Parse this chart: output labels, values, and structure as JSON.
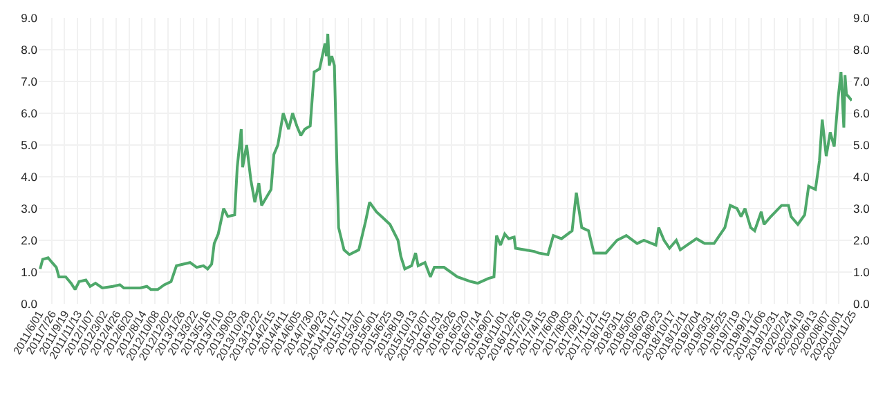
{
  "chart_data": {
    "type": "line",
    "x": [
      "2011-06-07",
      "2011-06-18",
      "2011-07-11",
      "2011-07-28",
      "2011-08-15",
      "2011-08-26",
      "2011-09-24",
      "2011-10-17",
      "2011-11-03",
      "2011-11-20",
      "2011-12-19",
      "2012-01-06",
      "2012-01-29",
      "2012-02-27",
      "2012-04-12",
      "2012-05-12",
      "2012-05-29",
      "2012-08-06",
      "2012-09-04",
      "2012-09-21",
      "2012-10-20",
      "2012-11-17",
      "2012-12-16",
      "2013-01-08",
      "2013-02-06",
      "2013-03-07",
      "2013-04-04",
      "2013-05-03",
      "2013-05-21",
      "2013-06-07",
      "2013-06-18",
      "2013-07-05",
      "2013-07-28",
      "2013-08-15",
      "2013-09-13",
      "2013-09-24",
      "2013-10-11",
      "2013-10-17",
      "2013-11-03",
      "2013-11-21",
      "2013-12-08",
      "2013-12-25",
      "2014-01-06",
      "2014-02-15",
      "2014-02-27",
      "2014-03-16",
      "2014-04-08",
      "2014-05-01",
      "2014-05-18",
      "2014-06-05",
      "2014-06-22",
      "2014-07-09",
      "2014-08-01",
      "2014-08-18",
      "2014-09-10",
      "2014-10-03",
      "2014-10-09",
      "2014-10-15",
      "2014-10-21",
      "2014-11-01",
      "2014-11-12",
      "2014-11-18",
      "2014-11-30",
      "2014-12-23",
      "2015-01-15",
      "2015-02-24",
      "2015-03-25",
      "2015-04-11",
      "2015-05-10",
      "2015-06-08",
      "2015-07-07",
      "2015-08-10",
      "2015-08-22",
      "2015-09-08",
      "2015-10-07",
      "2015-10-24",
      "2015-11-04",
      "2015-12-03",
      "2015-12-26",
      "2016-01-12",
      "2016-02-22",
      "2016-04-19",
      "2016-06-16",
      "2016-07-15",
      "2016-08-30",
      "2016-09-22",
      "2016-10-03",
      "2016-10-20",
      "2016-11-07",
      "2016-11-24",
      "2016-12-17",
      "2016-12-23",
      "2017-03-13",
      "2017-03-31",
      "2017-05-10",
      "2017-06-02",
      "2017-07-07",
      "2017-08-21",
      "2017-09-08",
      "2017-10-01",
      "2017-10-30",
      "2017-11-22",
      "2018-01-12",
      "2018-02-28",
      "2018-04-09",
      "2018-05-25",
      "2018-06-23",
      "2018-08-13",
      "2018-08-25",
      "2018-09-17",
      "2018-10-10",
      "2018-11-08",
      "2018-11-25",
      "2018-12-24",
      "2019-02-02",
      "2019-03-09",
      "2019-04-18",
      "2019-06-03",
      "2019-06-26",
      "2019-07-25",
      "2019-08-11",
      "2019-08-28",
      "2019-09-21",
      "2019-10-08",
      "2019-11-05",
      "2019-11-17",
      "2019-12-16",
      "2020-01-31",
      "2020-02-29",
      "2020-03-11",
      "2020-04-09",
      "2020-05-08",
      "2020-05-25",
      "2020-06-23",
      "2020-07-10",
      "2020-07-22",
      "2020-08-08",
      "2020-08-25",
      "2020-09-11",
      "2020-09-28",
      "2020-10-10",
      "2020-10-22",
      "2020-10-27",
      "2020-11-02",
      "2020-11-25"
    ],
    "series": [
      {
        "color": "#4ea86a",
        "values": [
          1.1,
          1.4,
          1.45,
          1.3,
          1.15,
          0.85,
          0.85,
          0.65,
          0.45,
          0.7,
          0.75,
          0.55,
          0.65,
          0.5,
          0.55,
          0.6,
          0.5,
          0.5,
          0.55,
          0.45,
          0.45,
          0.6,
          0.7,
          1.2,
          1.25,
          1.3,
          1.15,
          1.2,
          1.1,
          1.25,
          1.9,
          2.2,
          3.0,
          2.75,
          2.8,
          4.3,
          5.5,
          4.3,
          5.0,
          3.9,
          3.2,
          3.8,
          3.1,
          3.6,
          4.7,
          5.0,
          6.0,
          5.5,
          6.0,
          5.6,
          5.3,
          5.5,
          5.6,
          7.3,
          7.4,
          8.2,
          7.8,
          8.5,
          7.5,
          7.8,
          7.5,
          5.7,
          2.4,
          1.7,
          1.55,
          1.7,
          2.6,
          3.2,
          2.9,
          2.7,
          2.5,
          2.0,
          1.5,
          1.1,
          1.2,
          1.6,
          1.2,
          1.3,
          0.85,
          1.15,
          1.15,
          0.85,
          0.7,
          0.65,
          0.8,
          0.85,
          2.15,
          1.85,
          2.2,
          2.05,
          2.1,
          1.75,
          1.65,
          1.6,
          1.55,
          2.15,
          2.05,
          2.3,
          3.5,
          2.4,
          2.3,
          1.6,
          1.6,
          2.0,
          2.15,
          1.9,
          2.0,
          1.85,
          2.4,
          2.0,
          1.75,
          2.0,
          1.7,
          1.85,
          2.05,
          1.9,
          1.9,
          2.4,
          3.1,
          3.0,
          2.75,
          3.0,
          2.4,
          2.3,
          2.9,
          2.5,
          2.75,
          3.1,
          3.1,
          2.75,
          2.5,
          2.8,
          3.7,
          3.6,
          4.5,
          5.8,
          4.65,
          5.4,
          4.95,
          6.5,
          7.3,
          5.55,
          7.2,
          6.6,
          6.4
        ]
      }
    ],
    "xlim": [
      "2011-06-01",
      "2020-11-25"
    ],
    "xticks": [
      {
        "value": "2011-06-01",
        "label": "2011/6/01"
      },
      {
        "value": "2011-07-26",
        "label": "2011/7/26"
      },
      {
        "value": "2011-09-19",
        "label": "2011/9/19"
      },
      {
        "value": "2011-11-13",
        "label": "2011/11/13"
      },
      {
        "value": "2012-01-07",
        "label": "2012/1/07"
      },
      {
        "value": "2012-03-02",
        "label": "2012/3/02"
      },
      {
        "value": "2012-04-26",
        "label": "2012/4/26"
      },
      {
        "value": "2012-06-20",
        "label": "2012/6/20"
      },
      {
        "value": "2012-08-14",
        "label": "2012/8/14"
      },
      {
        "value": "2012-10-08",
        "label": "2012/10/08"
      },
      {
        "value": "2012-12-02",
        "label": "2012/12/02"
      },
      {
        "value": "2013-01-26",
        "label": "2013/1/26"
      },
      {
        "value": "2013-03-22",
        "label": "2013/3/22"
      },
      {
        "value": "2013-05-16",
        "label": "2013/5/16"
      },
      {
        "value": "2013-07-10",
        "label": "2013/7/10"
      },
      {
        "value": "2013-09-03",
        "label": "2013/9/03"
      },
      {
        "value": "2013-10-28",
        "label": "2013/10/28"
      },
      {
        "value": "2013-12-22",
        "label": "2013/12/22"
      },
      {
        "value": "2014-02-15",
        "label": "2014/2/15"
      },
      {
        "value": "2014-04-11",
        "label": "2014/4/11"
      },
      {
        "value": "2014-06-05",
        "label": "2014/6/05"
      },
      {
        "value": "2014-07-30",
        "label": "2014/7/30"
      },
      {
        "value": "2014-09-23",
        "label": "2014/9/23"
      },
      {
        "value": "2014-11-17",
        "label": "2014/11/17"
      },
      {
        "value": "2015-01-11",
        "label": "2015/1/11"
      },
      {
        "value": "2015-03-07",
        "label": "2015/3/07"
      },
      {
        "value": "2015-05-01",
        "label": "2015/5/01"
      },
      {
        "value": "2015-06-25",
        "label": "2015/6/25"
      },
      {
        "value": "2015-08-19",
        "label": "2015/8/19"
      },
      {
        "value": "2015-10-13",
        "label": "2015/10/13"
      },
      {
        "value": "2015-12-07",
        "label": "2015/12/07"
      },
      {
        "value": "2016-01-31",
        "label": "2016/1/31"
      },
      {
        "value": "2016-03-26",
        "label": "2016/3/26"
      },
      {
        "value": "2016-05-20",
        "label": "2016/5/20"
      },
      {
        "value": "2016-07-14",
        "label": "2016/7/14"
      },
      {
        "value": "2016-09-07",
        "label": "2016/9/07"
      },
      {
        "value": "2016-11-01",
        "label": "2016/11/01"
      },
      {
        "value": "2016-12-26",
        "label": "2016/12/26"
      },
      {
        "value": "2017-02-19",
        "label": "2017/2/19"
      },
      {
        "value": "2017-04-15",
        "label": "2017/4/15"
      },
      {
        "value": "2017-06-09",
        "label": "2017/6/09"
      },
      {
        "value": "2017-08-03",
        "label": "2017/8/03"
      },
      {
        "value": "2017-09-27",
        "label": "2017/9/27"
      },
      {
        "value": "2017-11-21",
        "label": "2017/11/21"
      },
      {
        "value": "2018-01-15",
        "label": "2018/1/15"
      },
      {
        "value": "2018-03-11",
        "label": "2018/3/11"
      },
      {
        "value": "2018-05-05",
        "label": "2018/5/05"
      },
      {
        "value": "2018-06-29",
        "label": "2018/6/29"
      },
      {
        "value": "2018-08-23",
        "label": "2018/8/23"
      },
      {
        "value": "2018-10-17",
        "label": "2018/10/17"
      },
      {
        "value": "2018-12-11",
        "label": "2018/12/11"
      },
      {
        "value": "2019-02-04",
        "label": "2019/2/04"
      },
      {
        "value": "2019-03-31",
        "label": "2019/3/31"
      },
      {
        "value": "2019-05-25",
        "label": "2019/5/25"
      },
      {
        "value": "2019-07-19",
        "label": "2019/7/19"
      },
      {
        "value": "2019-09-12",
        "label": "2019/9/12"
      },
      {
        "value": "2019-11-06",
        "label": "2019/11/06"
      },
      {
        "value": "2019-12-31",
        "label": "2019/12/31"
      },
      {
        "value": "2020-02-24",
        "label": "2020/2/24"
      },
      {
        "value": "2020-04-19",
        "label": "2020/4/19"
      },
      {
        "value": "2020-06-13",
        "label": "2020/6/13"
      },
      {
        "value": "2020-08-07",
        "label": "2020/8/07"
      },
      {
        "value": "2020-10-01",
        "label": "2020/10/01"
      },
      {
        "value": "2020-11-25",
        "label": "2020/11/25"
      }
    ],
    "ylim": [
      0,
      9
    ],
    "yticks": [
      {
        "value": 0,
        "label": "0.0"
      },
      {
        "value": 1,
        "label": "1.0"
      },
      {
        "value": 2,
        "label": "2.0"
      },
      {
        "value": 3,
        "label": "3.0"
      },
      {
        "value": 4,
        "label": "4.0"
      },
      {
        "value": 5,
        "label": "5.0"
      },
      {
        "value": 6,
        "label": "6.0"
      },
      {
        "value": 7,
        "label": "7.0"
      },
      {
        "value": 8,
        "label": "8.0"
      },
      {
        "value": 9,
        "label": "9.0"
      }
    ],
    "y2lim": [
      0,
      9
    ],
    "y2ticks": [
      {
        "value": 0,
        "label": "0.0"
      },
      {
        "value": 1,
        "label": "1.0"
      },
      {
        "value": 2,
        "label": "2.0"
      },
      {
        "value": 3,
        "label": "3.0"
      },
      {
        "value": 4,
        "label": "4.0"
      },
      {
        "value": 5,
        "label": "5.0"
      },
      {
        "value": 6,
        "label": "6.0"
      },
      {
        "value": 7,
        "label": "7.0"
      },
      {
        "value": 8,
        "label": "8.0"
      },
      {
        "value": 9,
        "label": "9.0"
      }
    ],
    "grid": true,
    "marker": "none",
    "line_style": "solid"
  }
}
